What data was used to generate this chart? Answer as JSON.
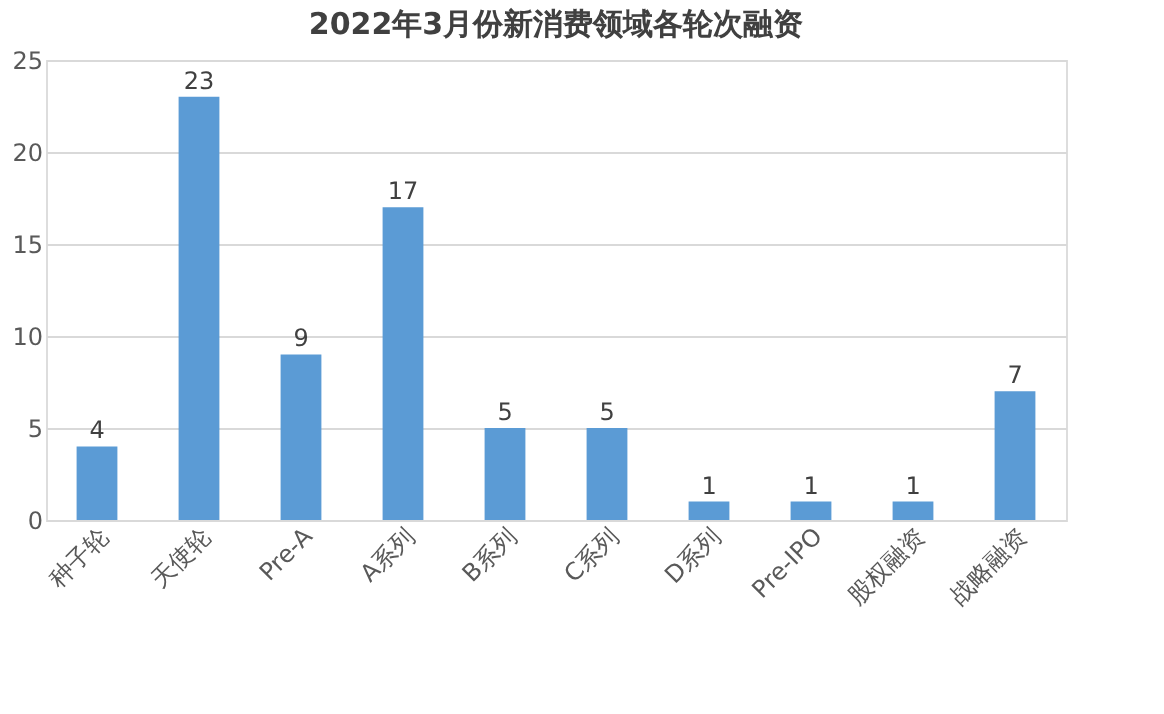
{
  "chart_data": {
    "type": "bar",
    "title": "2022年3月份新消费领域各轮次融资",
    "categories": [
      "种子轮",
      "天使轮",
      "Pre-A",
      "A系列",
      "B系列",
      "C系列",
      "D系列",
      "Pre-IPO",
      "股权融资",
      "战略融资"
    ],
    "values": [
      4,
      23,
      9,
      17,
      5,
      5,
      1,
      1,
      1,
      7
    ],
    "color": "#5b9bd5",
    "ylim": [
      0,
      25
    ],
    "yticks": [
      0,
      5,
      10,
      15,
      20,
      25
    ],
    "grid": "y",
    "data_labels": true
  }
}
